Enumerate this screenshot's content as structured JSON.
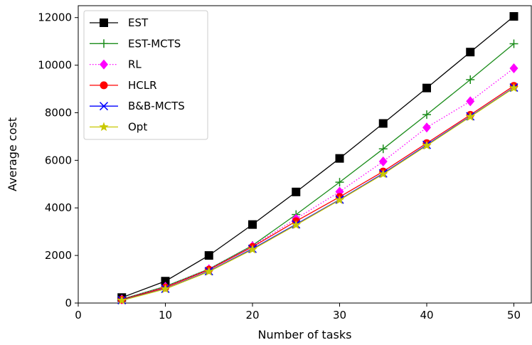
{
  "chart_data": {
    "type": "line",
    "title": "",
    "xlabel": "Number of tasks",
    "ylabel": "Average cost",
    "xlim": [
      0,
      52
    ],
    "ylim": [
      0,
      12500
    ],
    "xticks": [
      0,
      10,
      20,
      30,
      40,
      50
    ],
    "yticks": [
      0,
      2000,
      4000,
      6000,
      8000,
      10000,
      12000
    ],
    "grid": false,
    "legend_position": "top-left",
    "x": [
      5,
      10,
      15,
      20,
      25,
      30,
      35,
      40,
      45,
      50
    ],
    "series": [
      {
        "name": "EST",
        "color": "#000000",
        "marker": "square",
        "linestyle": "solid",
        "values": [
          230,
          920,
          2000,
          3300,
          4670,
          6080,
          7550,
          9040,
          10550,
          12050
        ]
      },
      {
        "name": "EST-MCTS",
        "color": "#1a8c1a",
        "marker": "plus",
        "linestyle": "solid",
        "values": [
          160,
          700,
          1430,
          2420,
          3720,
          5080,
          6480,
          7920,
          9390,
          10900
        ]
      },
      {
        "name": "RL",
        "color": "#ff00ff",
        "marker": "diamond",
        "linestyle": "dotted",
        "values": [
          150,
          680,
          1420,
          2390,
          3540,
          4680,
          5950,
          7380,
          8480,
          9870
        ]
      },
      {
        "name": "HCLR",
        "color": "#ff0000",
        "marker": "circle",
        "linestyle": "solid",
        "values": [
          140,
          650,
          1400,
          2360,
          3440,
          4460,
          5530,
          6720,
          7910,
          9130
        ]
      },
      {
        "name": "B&B-MCTS",
        "color": "#0000ff",
        "marker": "x",
        "linestyle": "solid",
        "values": [
          120,
          600,
          1340,
          2280,
          3310,
          4350,
          5450,
          6650,
          7850,
          9060
        ]
      },
      {
        "name": "Opt",
        "color": "#c8c800",
        "marker": "star",
        "linestyle": "solid",
        "values": [
          110,
          590,
          1320,
          2250,
          3280,
          4330,
          5420,
          6620,
          7830,
          9040
        ]
      }
    ]
  }
}
